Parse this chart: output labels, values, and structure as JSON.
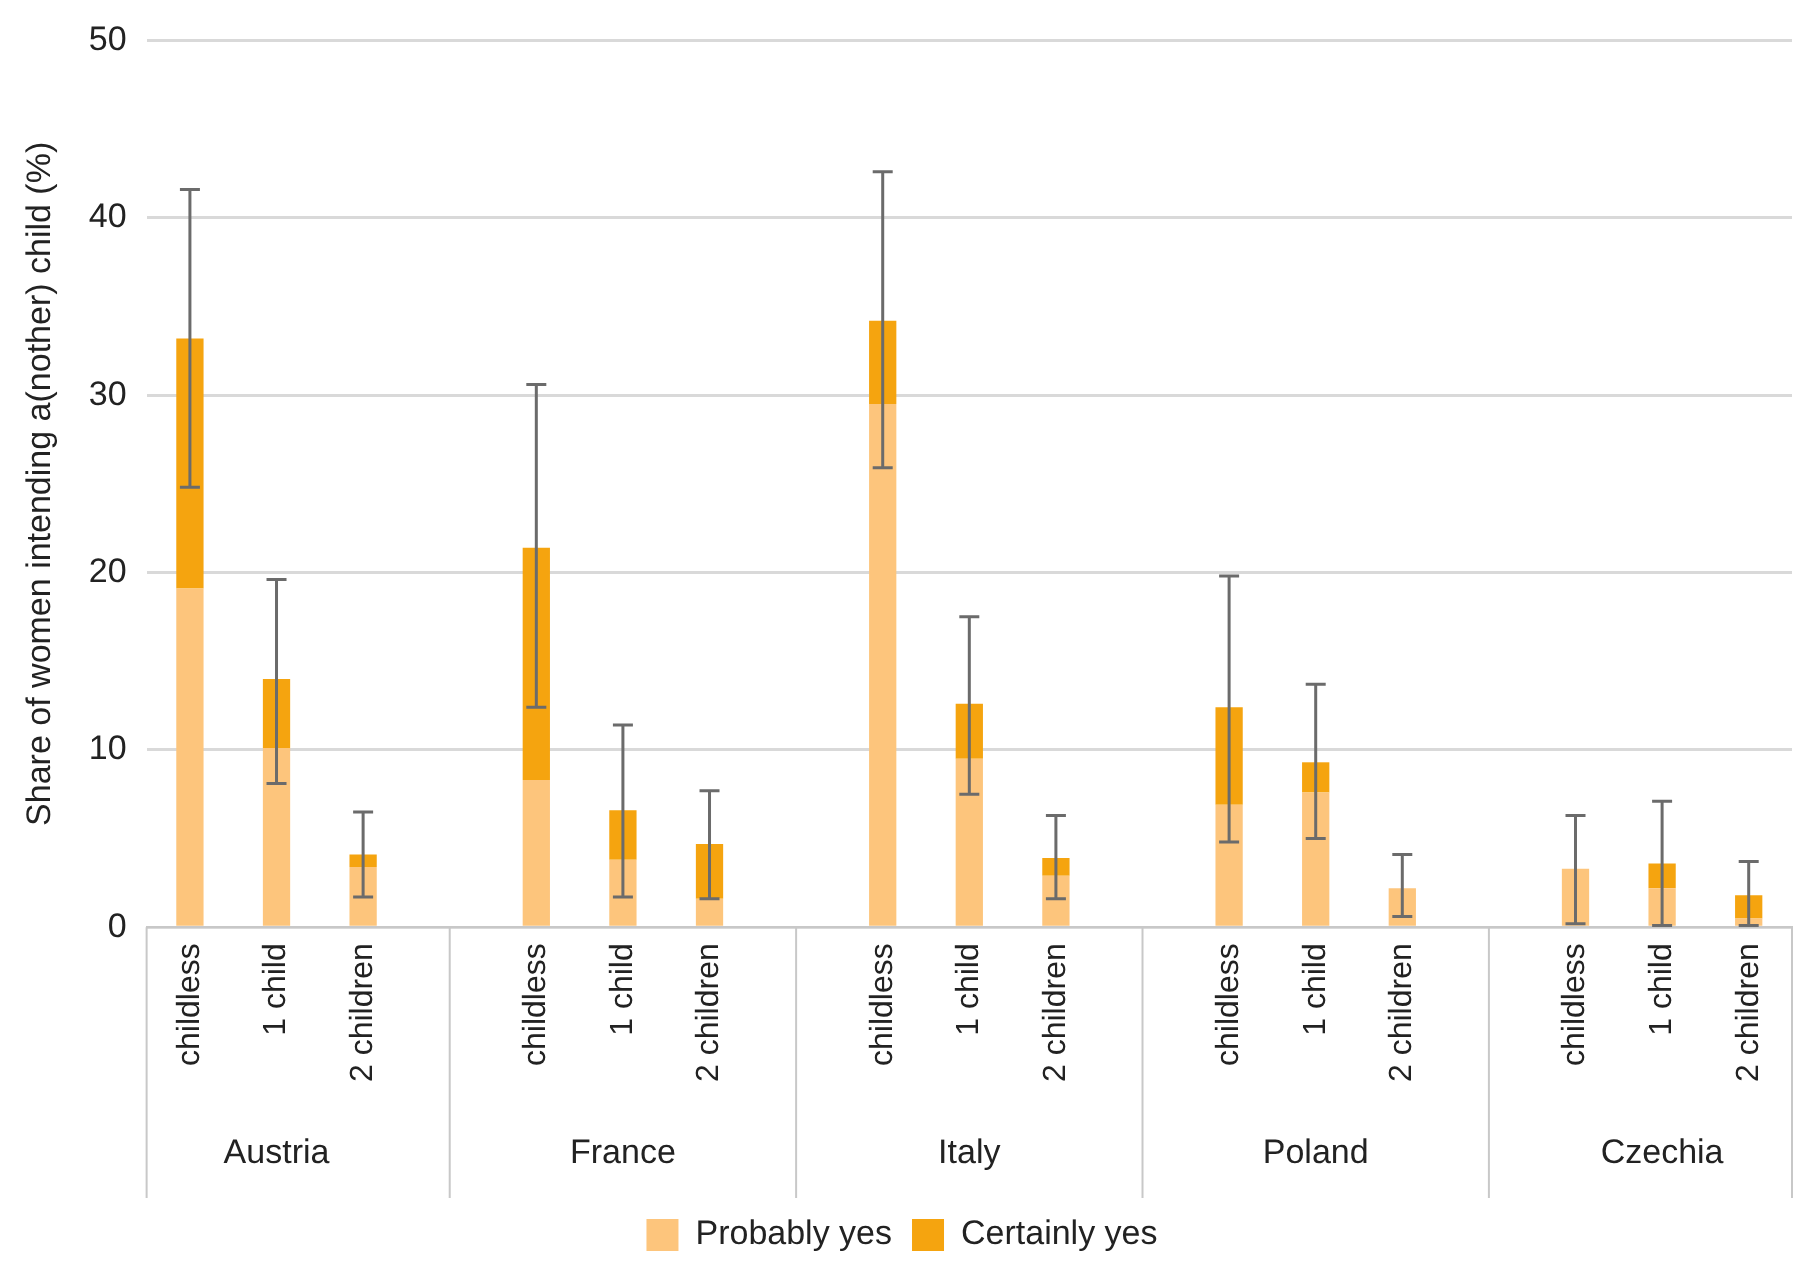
{
  "chart_data": {
    "type": "bar",
    "stacked": true,
    "ylabel": "Share of women intending a(nother) child (%)",
    "categories": [
      "childless",
      "1 child",
      "2 children",
      null,
      "childless",
      "1 child",
      "2 children",
      null,
      "childless",
      "1 child",
      "2 children",
      null,
      "childless",
      "1 child",
      "2 children",
      null,
      "childless",
      "1 child",
      "2 children"
    ],
    "series": [
      {
        "name": "Probably yes",
        "color": "#fdc57c",
        "values": [
          19.1,
          10.1,
          3.4,
          null,
          8.3,
          3.8,
          1.6,
          null,
          29.5,
          9.5,
          2.9,
          null,
          6.9,
          7.6,
          2.2,
          null,
          3.3,
          2.2,
          0.5
        ]
      },
      {
        "name": "Certainly yes",
        "color": "#f5a40f",
        "values": [
          14.1,
          3.9,
          0.7,
          null,
          13.1,
          2.8,
          3.1,
          null,
          4.7,
          3.1,
          1.0,
          null,
          5.5,
          1.7,
          0,
          null,
          0,
          1.4,
          1.3
        ],
        "errors": [
          [
            24.8,
            41.6
          ],
          [
            8.1,
            19.6
          ],
          [
            1.7,
            6.5
          ],
          null,
          [
            12.4,
            30.6
          ],
          [
            1.7,
            11.4
          ],
          [
            1.6,
            7.7
          ],
          null,
          [
            25.9,
            42.6
          ],
          [
            7.5,
            17.5
          ],
          [
            1.6,
            6.3
          ],
          null,
          [
            4.8,
            19.8
          ],
          [
            5.0,
            13.7
          ],
          [
            0.6,
            4.1
          ],
          null,
          [
            0.2,
            6.3
          ],
          [
            0.1,
            7.1
          ],
          [
            0.1,
            3.7
          ]
        ]
      }
    ],
    "ylim": [
      0,
      50
    ],
    "yticks": [
      0,
      10,
      20,
      30,
      40,
      50
    ],
    "grid": "y",
    "legend": "bottom",
    "annotations": [
      "Austria",
      "France",
      "Italy",
      "Poland",
      "Czechia"
    ]
  }
}
